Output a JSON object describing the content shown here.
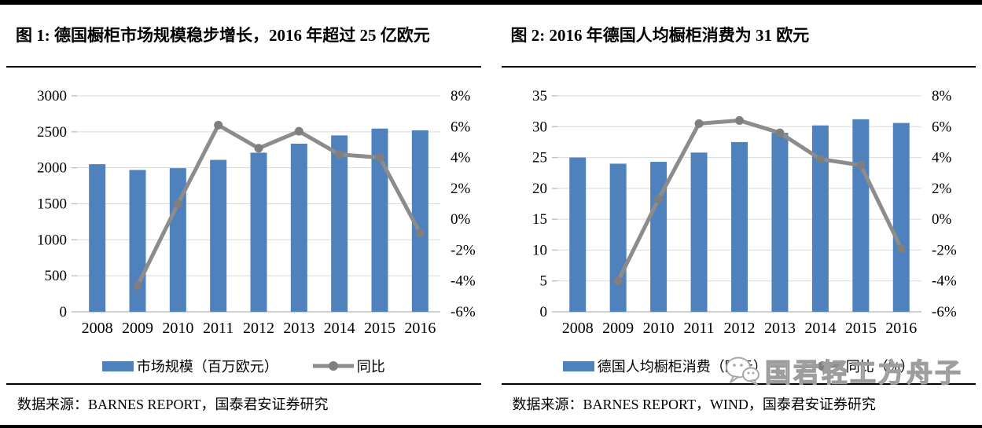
{
  "chart_data": [
    {
      "type": "bar+line",
      "title": "图 1: 德国橱柜市场规模稳步增长，2016 年超过 25 亿欧元",
      "source": "数据来源：BARNES REPORT，国泰君安证券研究",
      "categories": [
        "2008",
        "2009",
        "2010",
        "2011",
        "2012",
        "2013",
        "2014",
        "2015",
        "2016"
      ],
      "series": [
        {
          "name": "市场规模（百万欧元）",
          "type": "bar",
          "axis": "left",
          "color": "#4f81bd",
          "values": [
            2050,
            1970,
            1995,
            2110,
            2210,
            2335,
            2450,
            2545,
            2520
          ]
        },
        {
          "name": "同比",
          "type": "line",
          "axis": "right",
          "color": "#8c8c8c",
          "values": [
            null,
            -4.3,
            1.0,
            6.1,
            4.6,
            5.7,
            4.2,
            4.0,
            -0.9
          ]
        }
      ],
      "left_axis": {
        "min": 0,
        "max": 3000,
        "step": 500,
        "suffix": ""
      },
      "right_axis": {
        "min": -6,
        "max": 8,
        "step": 2,
        "suffix": "%"
      },
      "grid": true,
      "legend_position": "bottom"
    },
    {
      "type": "bar+line",
      "title": "图 2: 2016 年德国人均橱柜消费为 31 欧元",
      "source": "数据来源：BARNES REPORT，WIND，国泰君安证券研究",
      "categories": [
        "2008",
        "2009",
        "2010",
        "2011",
        "2012",
        "2013",
        "2014",
        "2015",
        "2016"
      ],
      "series": [
        {
          "name": "德国人均橱柜消费（欧元）",
          "type": "bar",
          "axis": "left",
          "color": "#4f81bd",
          "values": [
            25.0,
            24.0,
            24.3,
            25.8,
            27.5,
            29.0,
            30.2,
            31.2,
            30.6
          ]
        },
        {
          "name": "同比（%）",
          "type": "line",
          "axis": "right",
          "color": "#8c8c8c",
          "values": [
            null,
            -4.0,
            1.3,
            6.2,
            6.4,
            5.6,
            3.9,
            3.5,
            -1.9
          ]
        }
      ],
      "left_axis": {
        "min": 0,
        "max": 35,
        "step": 5,
        "suffix": ""
      },
      "right_axis": {
        "min": -6,
        "max": 8,
        "step": 2,
        "suffix": "%"
      },
      "grid": true,
      "legend_position": "bottom"
    }
  ],
  "watermark": {
    "text": "国君轻工方舟子",
    "icon": "wechat-icon"
  },
  "colors": {
    "bar": "#4f81bd",
    "line": "#8c8c8c",
    "grid": "#d9d9d9",
    "axis": "#bfbfbf",
    "text": "#000000",
    "watermark": "#9d9d9d",
    "border": "#000000"
  }
}
